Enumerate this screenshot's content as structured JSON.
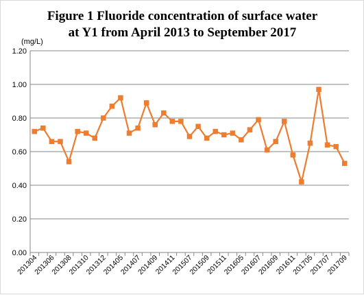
{
  "chart_data": {
    "type": "line",
    "title_lines": [
      "Figure 1  Fluoride concentration of surface water",
      "at Y1 from April 2013 to September 2017"
    ],
    "unit": "(mg/L)",
    "ylim": [
      0,
      1.2
    ],
    "y_ticks": [
      "0.00",
      "0.20",
      "0.40",
      "0.60",
      "0.80",
      "1.00",
      "1.20"
    ],
    "grid": "horizontal",
    "legend": "none",
    "color": "#ed7d31",
    "x": [
      "201304",
      "201305",
      "201306",
      "201307",
      "201308",
      "201309",
      "201310",
      "201311",
      "201312",
      "201404",
      "201405",
      "201406",
      "201407",
      "201408",
      "201409",
      "201410",
      "201411",
      "201412",
      "201507",
      "201508",
      "201509",
      "201510",
      "201511",
      "201512",
      "201605",
      "201606",
      "201607",
      "201608",
      "201609",
      "201610",
      "201611",
      "201612",
      "201705",
      "201706",
      "201707",
      "201708",
      "201709"
    ],
    "x_tick_labels": [
      "201304",
      "",
      "201306",
      "",
      "201308",
      "",
      "201310",
      "",
      "201312",
      "",
      "201405",
      "",
      "201407",
      "",
      "201409",
      "",
      "201411",
      "",
      "201507",
      "",
      "201509",
      "",
      "201511",
      "",
      "201605",
      "",
      "201607",
      "",
      "201609",
      "",
      "201611",
      "",
      "201705",
      "",
      "201707",
      "",
      "201709"
    ],
    "values": [
      0.72,
      0.74,
      0.66,
      0.66,
      0.54,
      0.72,
      0.71,
      0.68,
      0.8,
      0.87,
      0.92,
      0.71,
      0.74,
      0.89,
      0.76,
      0.83,
      0.78,
      0.78,
      0.69,
      0.75,
      0.68,
      0.72,
      0.7,
      0.71,
      0.67,
      0.73,
      0.79,
      0.61,
      0.66,
      0.78,
      0.58,
      0.42,
      0.65,
      0.97,
      0.64,
      0.63,
      0.53
    ]
  }
}
